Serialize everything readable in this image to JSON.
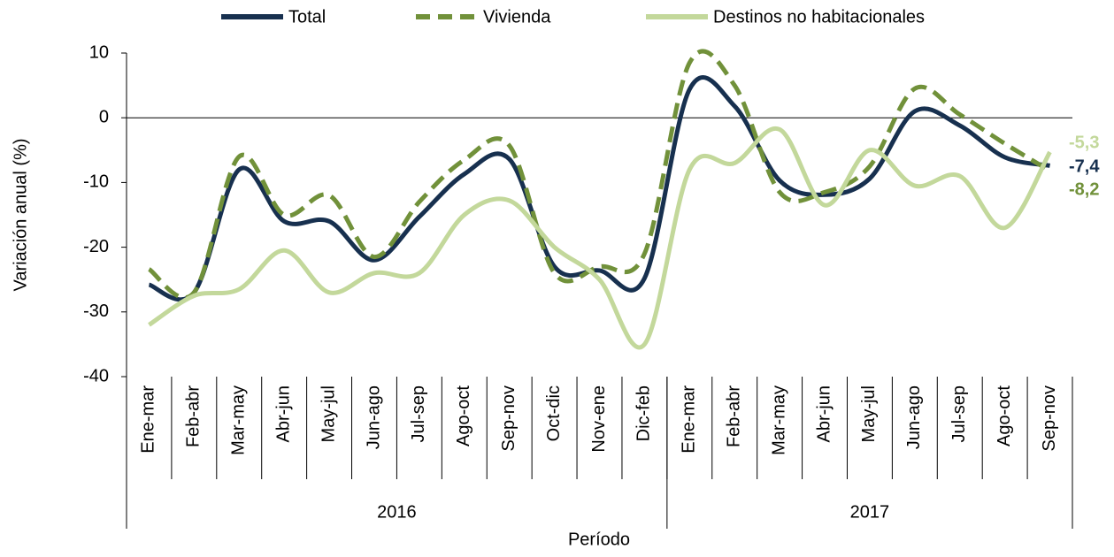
{
  "chart_data": {
    "type": "line",
    "ylabel": "Variación anual (%)",
    "xlabel": "Período",
    "groups": [
      {
        "name": "2016",
        "categories": [
          "Ene-mar",
          "Feb-abr",
          "Mar-may",
          "Abr-jun",
          "May-jul",
          "Jun-ago",
          "Jul-sep",
          "Ago-oct",
          "Sep-nov",
          "Oct-dic",
          "Nov-ene",
          "Dic-feb"
        ]
      },
      {
        "name": "2017",
        "categories": [
          "Ene-mar",
          "Feb-abr",
          "Mar-may",
          "Abr-jun",
          "May-jul",
          "Jun-ago",
          "Jul-sep",
          "Ago-oct",
          "Sep-nov"
        ]
      }
    ],
    "series": [
      {
        "name": "Total",
        "color": "#17304f",
        "dashed": false,
        "values": [
          -25.8,
          -27,
          -8,
          -16,
          -16,
          -22,
          -15.3,
          -8.7,
          -6.4,
          -23,
          -23.6,
          -24.8,
          4.4,
          1.8,
          -9.7,
          -11.9,
          -9.4,
          1,
          -1.2,
          -6.1,
          -7.4
        ],
        "value_labels": [
          null,
          null,
          null,
          null,
          null,
          null,
          null,
          null,
          null,
          null,
          null,
          null,
          null,
          null,
          null,
          null,
          null,
          null,
          null,
          null,
          "-7,4"
        ]
      },
      {
        "name": "Vivienda",
        "color": "#71913a",
        "dashed": true,
        "values": [
          -23.4,
          -27,
          -6,
          -15,
          -12,
          -21.5,
          -13,
          -6.5,
          -4.3,
          -24,
          -23,
          -21,
          8.5,
          5,
          -11.5,
          -11.5,
          -7.5,
          4.5,
          0.5,
          -4,
          -8.2
        ],
        "value_labels": [
          null,
          null,
          null,
          null,
          null,
          null,
          null,
          null,
          null,
          null,
          null,
          null,
          null,
          null,
          null,
          null,
          null,
          null,
          null,
          null,
          "-8,2"
        ]
      },
      {
        "name": "Destinos no habitacionales",
        "color": "#c3d89b",
        "dashed": false,
        "values": [
          -32,
          -27.5,
          -26.5,
          -20.5,
          -27,
          -24,
          -24,
          -15,
          -12.8,
          -20,
          -25,
          -35,
          -8,
          -7,
          -1.8,
          -13.5,
          -5,
          -10.5,
          -9,
          -17,
          -5.3
        ],
        "value_labels": [
          null,
          null,
          null,
          null,
          null,
          null,
          null,
          null,
          null,
          null,
          null,
          null,
          null,
          null,
          null,
          null,
          null,
          null,
          null,
          null,
          "-5,3"
        ]
      }
    ],
    "ylim": [
      -40,
      10
    ],
    "yticks": [
      -40,
      -30,
      -20,
      -10,
      0,
      10
    ],
    "legend": "top",
    "smooth": true
  }
}
